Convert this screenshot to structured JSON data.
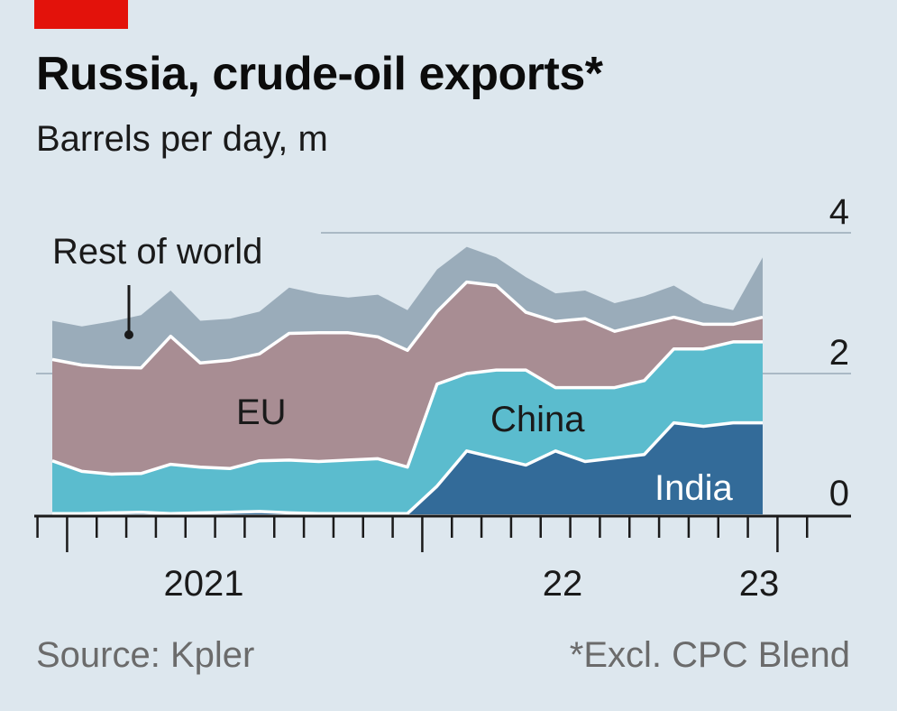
{
  "header": {
    "title": "Russia, crude-oil exports*",
    "subtitle": "Barrels per day, m"
  },
  "footer": {
    "source": "Source: Kpler",
    "note": "*Excl. CPC Blend"
  },
  "colors": {
    "background": "#dde7ee",
    "india": "#336b99",
    "china": "#5bbcce",
    "eu": "#a88d93",
    "rest": "#9aacba",
    "grid": "#aab9c5",
    "axis": "#1a1a1a",
    "brand": "#e3120b"
  },
  "chart_data": {
    "type": "area",
    "stacked": true,
    "title": "Russia, crude-oil exports*",
    "ylabel": "Barrels per day, m",
    "ylim": [
      0,
      4
    ],
    "yticks": [
      {
        "value": 0,
        "label": "0"
      },
      {
        "value": 2,
        "label": "2"
      },
      {
        "value": 4,
        "label": "4"
      }
    ],
    "x_months": [
      "2021-01",
      "2021-02",
      "2021-03",
      "2021-04",
      "2021-05",
      "2021-06",
      "2021-07",
      "2021-08",
      "2021-09",
      "2021-10",
      "2021-11",
      "2021-12",
      "2022-01",
      "2022-02",
      "2022-03",
      "2022-04",
      "2022-05",
      "2022-06",
      "2022-07",
      "2022-08",
      "2022-09",
      "2022-10",
      "2022-11",
      "2022-12",
      "2023-01"
    ],
    "x_tick_labels": [
      {
        "month_index": 5.5,
        "label": "2021"
      },
      {
        "month_index": 17.5,
        "label": "22"
      },
      {
        "month_index": 24,
        "label": "23"
      }
    ],
    "series": [
      {
        "name": "India",
        "label": "India",
        "values": [
          0.01,
          0.01,
          0.02,
          0.03,
          0.01,
          0.02,
          0.03,
          0.04,
          0.02,
          0.01,
          0.01,
          0.01,
          0.01,
          0.4,
          0.9,
          0.8,
          0.7,
          0.9,
          0.75,
          0.8,
          0.85,
          1.3,
          1.25,
          1.3,
          1.3
        ]
      },
      {
        "name": "China",
        "label": "China",
        "values": [
          0.75,
          0.6,
          0.55,
          0.55,
          0.7,
          0.65,
          0.62,
          0.72,
          0.75,
          0.74,
          0.76,
          0.78,
          0.66,
          1.45,
          1.1,
          1.25,
          1.35,
          0.9,
          1.05,
          1.0,
          1.05,
          1.05,
          1.1,
          1.15,
          1.15
        ]
      },
      {
        "name": "EU",
        "label": "EU",
        "values": [
          1.44,
          1.51,
          1.52,
          1.5,
          1.82,
          1.48,
          1.54,
          1.52,
          1.8,
          1.83,
          1.81,
          1.73,
          1.66,
          1.03,
          1.3,
          1.2,
          0.82,
          0.94,
          0.98,
          0.8,
          0.8,
          0.45,
          0.35,
          0.25,
          0.35
        ]
      },
      {
        "name": "Rest of world",
        "label": "Rest of world",
        "values": [
          0.55,
          0.55,
          0.65,
          0.75,
          0.65,
          0.6,
          0.59,
          0.6,
          0.65,
          0.55,
          0.5,
          0.6,
          0.57,
          0.6,
          0.5,
          0.4,
          0.5,
          0.4,
          0.4,
          0.4,
          0.4,
          0.45,
          0.3,
          0.2,
          0.85
        ]
      }
    ],
    "annotations": [
      "Rest of world",
      "EU",
      "China",
      "India"
    ]
  }
}
